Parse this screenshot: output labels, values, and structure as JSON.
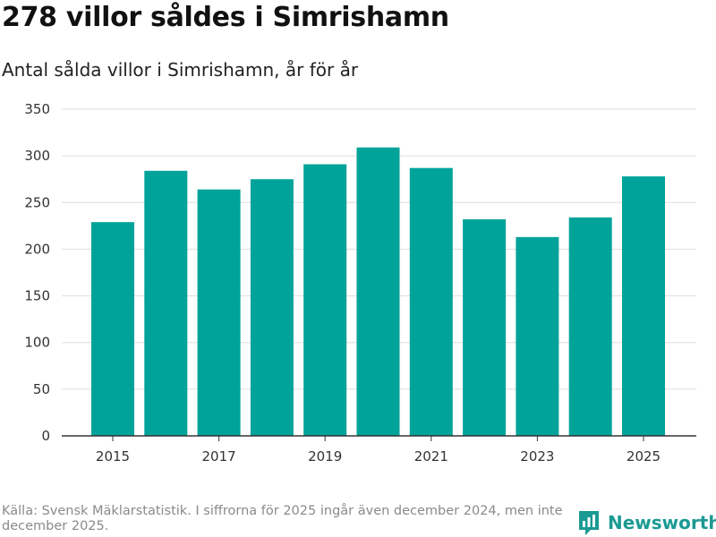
{
  "header": {
    "title": "278 villor såldes i Simrishamn",
    "subtitle": "Antal sålda villor i Simrishamn, år för år"
  },
  "footer": {
    "source": "Källa: Svensk Mäklarstatistik. I siffrorna för 2025 ingår även december 2024, men inte december 2025.",
    "brand": "Newsworthy",
    "logo_icon": "newsworthy-logo-icon"
  },
  "colors": {
    "bar": "#00a39a",
    "grid": "#dddddd",
    "axis": "#333333",
    "brand": "#1a9a93"
  },
  "chart_data": {
    "type": "bar",
    "title": "278 villor såldes i Simrishamn",
    "subtitle": "Antal sålda villor i Simrishamn, år för år",
    "xlabel": "",
    "ylabel": "",
    "categories": [
      "2015",
      "2016",
      "2017",
      "2018",
      "2019",
      "2020",
      "2021",
      "2022",
      "2023",
      "2024",
      "2025"
    ],
    "values": [
      229,
      284,
      264,
      275,
      291,
      309,
      287,
      232,
      213,
      234,
      278
    ],
    "x_tick_labels": [
      "2015",
      "2017",
      "2019",
      "2021",
      "2023",
      "2025"
    ],
    "y_ticks": [
      0,
      50,
      100,
      150,
      200,
      250,
      300,
      350
    ],
    "ylim": [
      0,
      350
    ],
    "grid": true,
    "legend": "none"
  }
}
